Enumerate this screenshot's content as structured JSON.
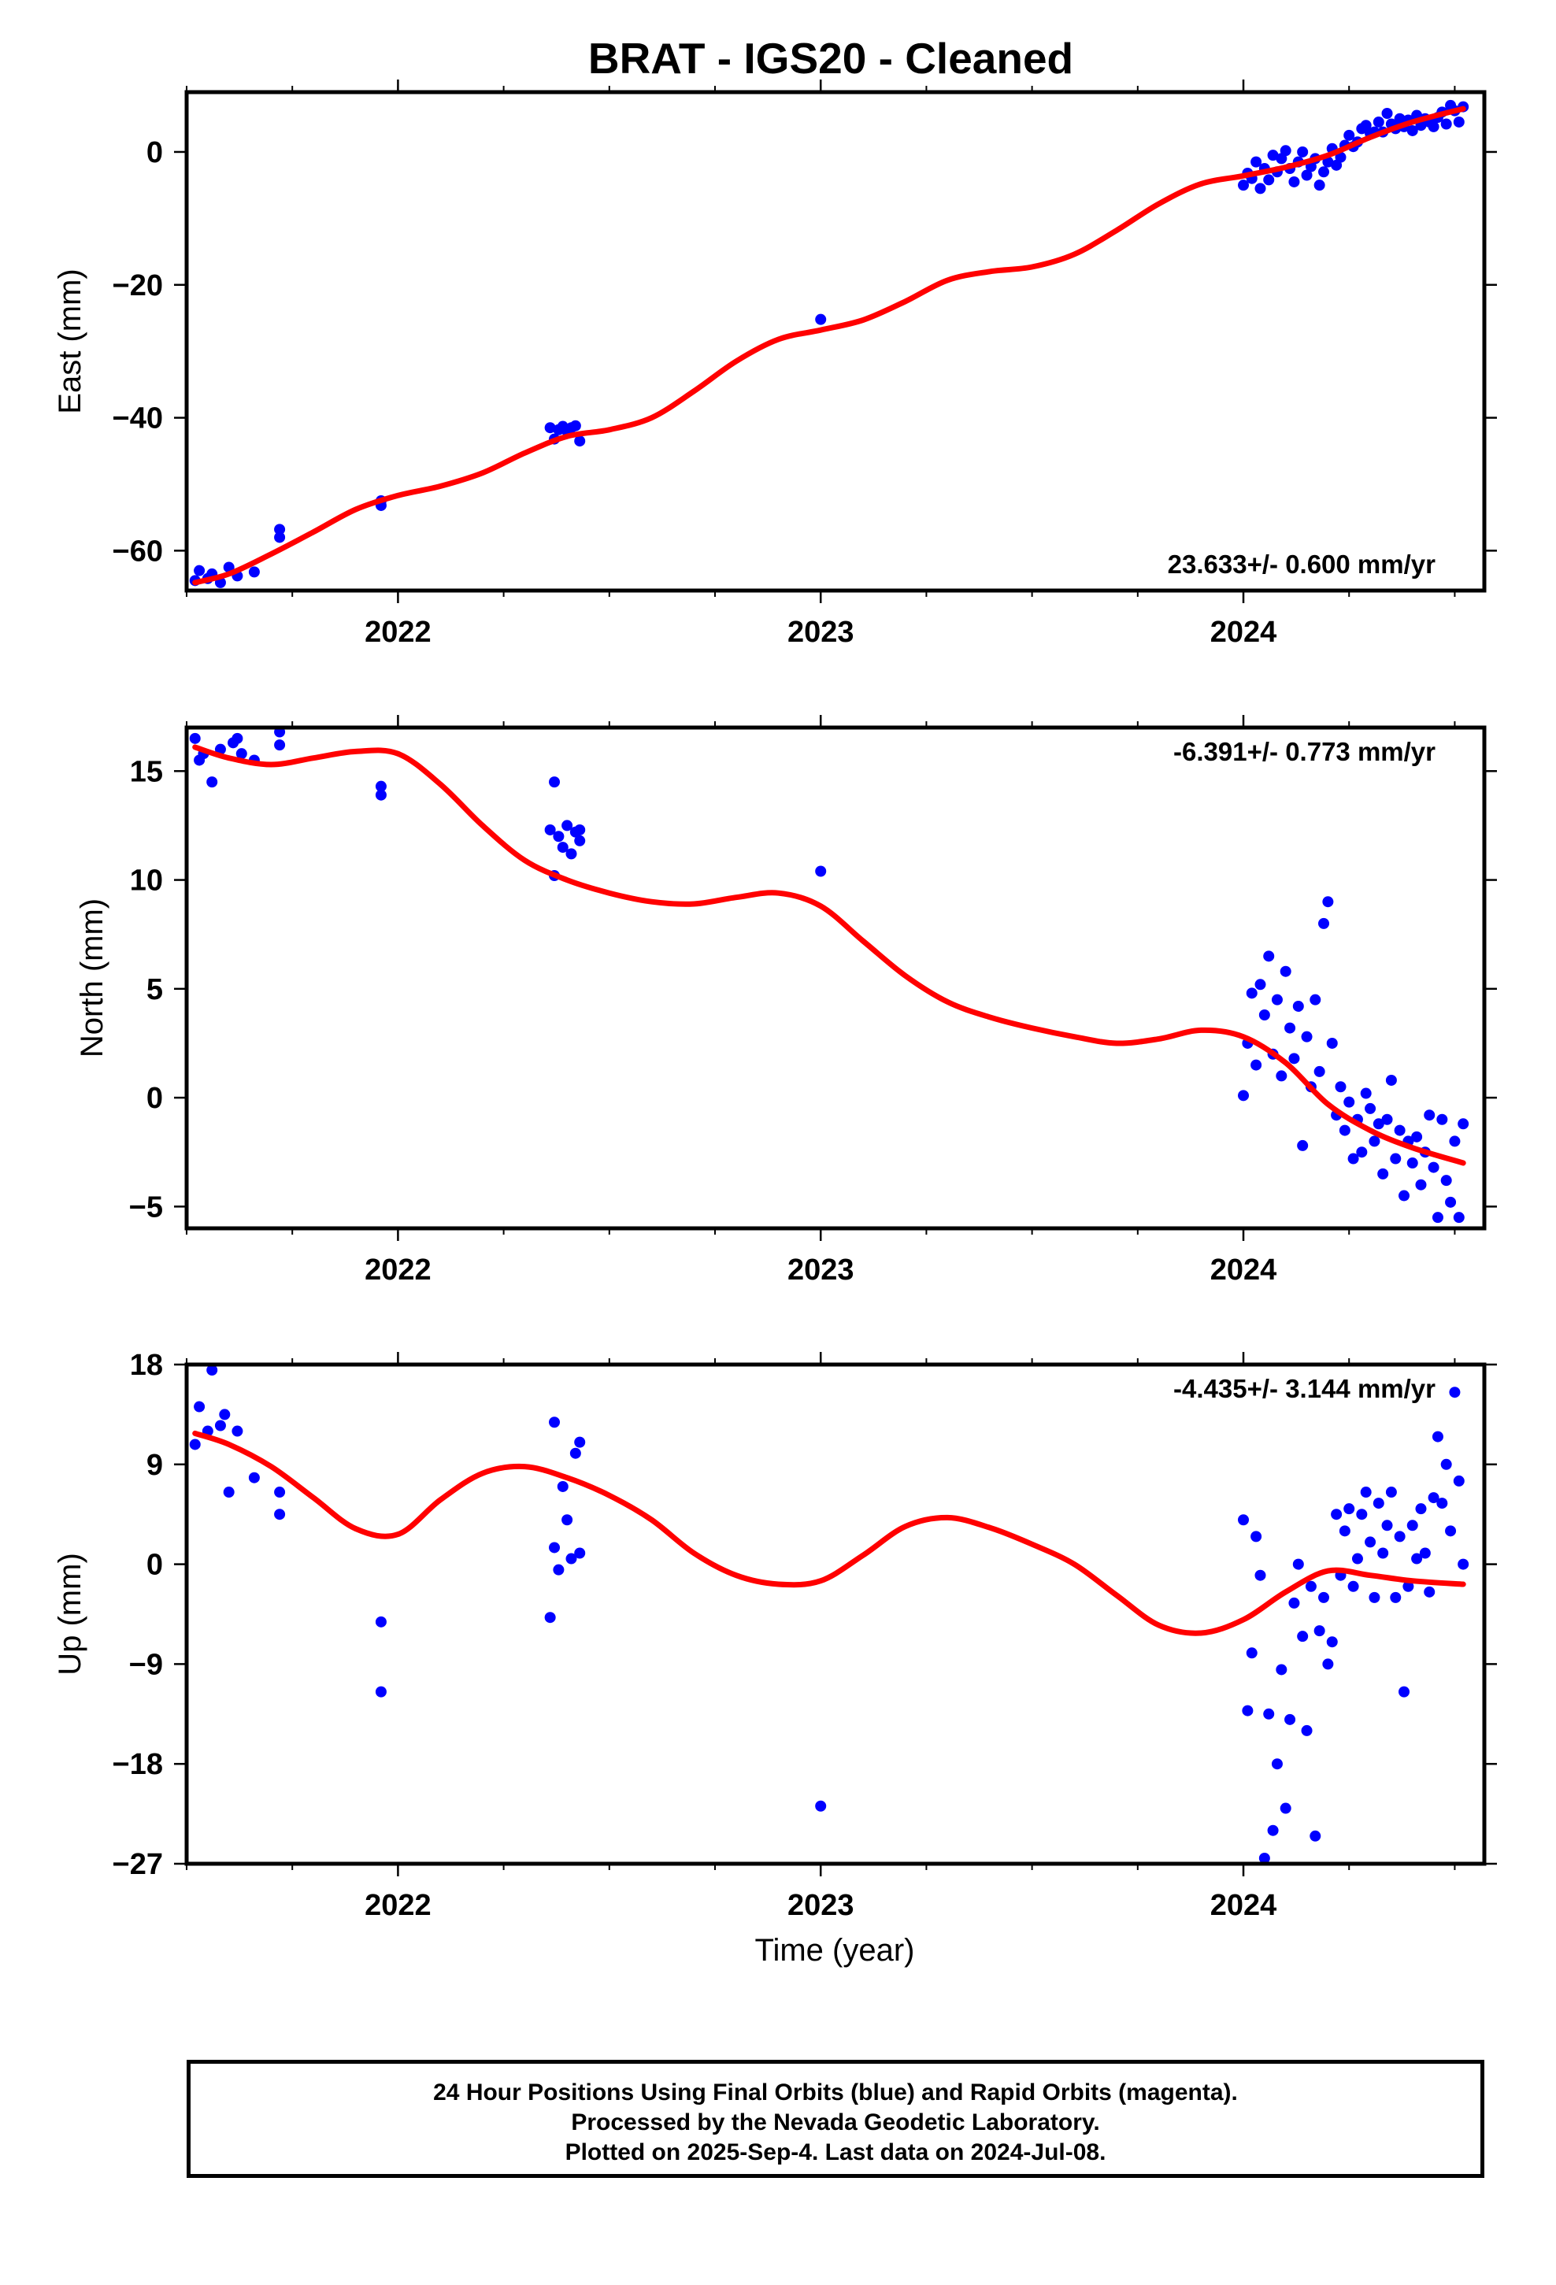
{
  "title": "BRAT  - IGS20 - Cleaned",
  "x_axis_label": "Time (year)",
  "footer": {
    "line1": "24 Hour Positions Using Final Orbits (blue) and Rapid Orbits (magenta).",
    "line2": "Processed by the Nevada Geodetic Laboratory.",
    "line3": "Plotted on 2025-Sep-4. Last data on 2024-Jul-08."
  },
  "colors": {
    "points": "#0000ff",
    "fit": "#ff0000",
    "frame": "#000000"
  },
  "chart_data": [
    {
      "type": "scatter",
      "ylabel": "East (mm)",
      "rate_label": "23.633+/- 0.600 mm/yr",
      "xlim": [
        2021.5,
        2024.57
      ],
      "ylim": [
        -66,
        9
      ],
      "xticks": [
        2022,
        2023,
        2024
      ],
      "yticks": [
        -60,
        -40,
        -20,
        0
      ],
      "fit": {
        "x": [
          2021.52,
          2021.6,
          2021.7,
          2021.8,
          2021.9,
          2022.0,
          2022.1,
          2022.2,
          2022.3,
          2022.4,
          2022.5,
          2022.6,
          2022.7,
          2022.8,
          2022.9,
          2023.0,
          2023.1,
          2023.2,
          2023.3,
          2023.4,
          2023.5,
          2023.6,
          2023.7,
          2023.8,
          2023.9,
          2024.0,
          2024.1,
          2024.2,
          2024.3,
          2024.4,
          2024.52
        ],
        "y": [
          -64.8,
          -63.5,
          -60.5,
          -57.2,
          -53.8,
          -51.7,
          -50.3,
          -48.3,
          -45.3,
          -42.8,
          -41.8,
          -40.0,
          -36.0,
          -31.5,
          -28.2,
          -26.8,
          -25.3,
          -22.5,
          -19.3,
          -18.0,
          -17.3,
          -15.4,
          -11.8,
          -7.8,
          -4.8,
          -3.6,
          -2.3,
          -0.5,
          2.2,
          4.5,
          6.5
        ]
      },
      "points": {
        "x": [
          2021.52,
          2021.53,
          2021.55,
          2021.56,
          2021.58,
          2021.6,
          2021.62,
          2021.66,
          2021.72,
          2021.72,
          2021.96,
          2021.96,
          2022.36,
          2022.37,
          2022.38,
          2022.39,
          2022.4,
          2022.41,
          2022.42,
          2022.43,
          2023.0,
          2024.0,
          2024.01,
          2024.02,
          2024.03,
          2024.04,
          2024.05,
          2024.06,
          2024.07,
          2024.08,
          2024.09,
          2024.1,
          2024.11,
          2024.12,
          2024.13,
          2024.14,
          2024.15,
          2024.16,
          2024.17,
          2024.18,
          2024.19,
          2024.2,
          2024.21,
          2024.22,
          2024.23,
          2024.24,
          2024.25,
          2024.26,
          2024.27,
          2024.28,
          2024.29,
          2024.3,
          2024.31,
          2024.32,
          2024.33,
          2024.34,
          2024.35,
          2024.36,
          2024.37,
          2024.38,
          2024.39,
          2024.4,
          2024.41,
          2024.42,
          2024.43,
          2024.44,
          2024.45,
          2024.46,
          2024.47,
          2024.48,
          2024.49,
          2024.5,
          2024.51,
          2024.52
        ],
        "y": [
          -64.5,
          -63.0,
          -64.2,
          -63.5,
          -64.8,
          -62.5,
          -63.8,
          -63.2,
          -56.8,
          -58.0,
          -52.5,
          -53.2,
          -41.5,
          -43.2,
          -41.8,
          -41.3,
          -42.0,
          -41.5,
          -41.2,
          -43.5,
          -25.2,
          -5.0,
          -3.2,
          -4.0,
          -1.5,
          -5.5,
          -2.5,
          -4.2,
          -0.5,
          -3.0,
          -1.0,
          0.2,
          -2.5,
          -4.5,
          -1.5,
          0.0,
          -3.5,
          -2.2,
          -1.0,
          -5.0,
          -3.0,
          -1.5,
          0.5,
          -2.0,
          -0.8,
          1.0,
          2.5,
          0.8,
          1.5,
          3.5,
          4.0,
          2.8,
          3.0,
          4.5,
          3.0,
          5.8,
          4.2,
          3.5,
          5.0,
          3.8,
          4.8,
          3.2,
          5.5,
          4.0,
          5.0,
          4.5,
          3.8,
          5.2,
          6.0,
          4.2,
          7.0,
          6.2,
          4.5,
          6.8
        ]
      }
    },
    {
      "type": "scatter",
      "ylabel": "North (mm)",
      "rate_label": "-6.391+/- 0.773 mm/yr",
      "xlim": [
        2021.5,
        2024.57
      ],
      "ylim": [
        -6,
        17
      ],
      "xticks": [
        2022,
        2023,
        2024
      ],
      "yticks": [
        -5,
        0,
        5,
        10,
        15
      ],
      "fit": {
        "x": [
          2021.52,
          2021.6,
          2021.7,
          2021.8,
          2021.9,
          2022.0,
          2022.1,
          2022.2,
          2022.3,
          2022.4,
          2022.5,
          2022.6,
          2022.7,
          2022.8,
          2022.9,
          2023.0,
          2023.1,
          2023.2,
          2023.3,
          2023.4,
          2023.5,
          2023.6,
          2023.7,
          2023.8,
          2023.9,
          2024.0,
          2024.1,
          2024.2,
          2024.3,
          2024.4,
          2024.52
        ],
        "y": [
          16.1,
          15.6,
          15.3,
          15.6,
          15.9,
          15.8,
          14.4,
          12.5,
          10.9,
          10.0,
          9.4,
          9.0,
          8.9,
          9.2,
          9.4,
          8.8,
          7.2,
          5.6,
          4.4,
          3.7,
          3.2,
          2.8,
          2.5,
          2.7,
          3.1,
          2.8,
          1.6,
          -0.3,
          -1.5,
          -2.3,
          -3.0
        ]
      },
      "points": {
        "x": [
          2021.52,
          2021.53,
          2021.54,
          2021.56,
          2021.58,
          2021.61,
          2021.62,
          2021.63,
          2021.66,
          2021.72,
          2021.72,
          2021.96,
          2021.96,
          2022.36,
          2022.37,
          2022.37,
          2022.38,
          2022.39,
          2022.4,
          2022.41,
          2022.42,
          2022.43,
          2022.43,
          2023.0,
          2024.0,
          2024.01,
          2024.02,
          2024.03,
          2024.04,
          2024.05,
          2024.06,
          2024.07,
          2024.08,
          2024.09,
          2024.1,
          2024.11,
          2024.12,
          2024.13,
          2024.14,
          2024.15,
          2024.16,
          2024.17,
          2024.18,
          2024.19,
          2024.2,
          2024.21,
          2024.22,
          2024.23,
          2024.24,
          2024.25,
          2024.26,
          2024.27,
          2024.28,
          2024.29,
          2024.3,
          2024.31,
          2024.32,
          2024.33,
          2024.34,
          2024.35,
          2024.36,
          2024.37,
          2024.38,
          2024.39,
          2024.4,
          2024.41,
          2024.42,
          2024.43,
          2024.44,
          2024.45,
          2024.46,
          2024.47,
          2024.48,
          2024.49,
          2024.5,
          2024.51,
          2024.52
        ],
        "y": [
          16.5,
          15.5,
          15.8,
          14.5,
          16.0,
          16.3,
          16.5,
          15.8,
          15.5,
          16.8,
          16.2,
          14.3,
          13.9,
          12.3,
          14.5,
          10.2,
          12.0,
          11.5,
          12.5,
          11.2,
          12.2,
          11.8,
          12.3,
          10.4,
          0.1,
          2.5,
          4.8,
          1.5,
          5.2,
          3.8,
          6.5,
          2.0,
          4.5,
          1.0,
          5.8,
          3.2,
          1.8,
          4.2,
          -2.2,
          2.8,
          0.5,
          4.5,
          1.2,
          8.0,
          9.0,
          2.5,
          -0.8,
          0.5,
          -1.5,
          -0.2,
          -2.8,
          -1.0,
          -2.5,
          0.2,
          -0.5,
          -2.0,
          -1.2,
          -3.5,
          -1.0,
          0.8,
          -2.8,
          -1.5,
          -4.5,
          -2.0,
          -3.0,
          -1.8,
          -4.0,
          -2.5,
          -0.8,
          -3.2,
          -5.5,
          -1.0,
          -3.8,
          -4.8,
          -2.0,
          -5.5,
          -1.2
        ]
      }
    },
    {
      "type": "scatter",
      "ylabel": "Up (mm)",
      "rate_label": "-4.435+/- 3.144 mm/yr",
      "xlim": [
        2021.5,
        2024.57
      ],
      "ylim": [
        -27,
        18
      ],
      "xticks": [
        2022,
        2023,
        2024
      ],
      "yticks": [
        -27,
        -18,
        -9,
        0,
        9,
        18
      ],
      "fit": {
        "x": [
          2021.52,
          2021.6,
          2021.7,
          2021.8,
          2021.9,
          2022.0,
          2022.1,
          2022.2,
          2022.3,
          2022.4,
          2022.5,
          2022.6,
          2022.7,
          2022.8,
          2022.9,
          2023.0,
          2023.1,
          2023.2,
          2023.3,
          2023.4,
          2023.5,
          2023.6,
          2023.7,
          2023.8,
          2023.9,
          2024.0,
          2024.1,
          2024.2,
          2024.3,
          2024.4,
          2024.52
        ],
        "y": [
          11.8,
          10.8,
          8.8,
          6.0,
          3.2,
          2.7,
          5.8,
          8.2,
          8.8,
          7.8,
          6.2,
          4.0,
          1.0,
          -1.0,
          -1.8,
          -1.5,
          0.8,
          3.4,
          4.2,
          3.3,
          1.8,
          0.0,
          -2.8,
          -5.5,
          -6.2,
          -5.0,
          -2.5,
          -0.6,
          -1.0,
          -1.5,
          -1.8
        ]
      },
      "points": {
        "x": [
          2021.52,
          2021.53,
          2021.55,
          2021.56,
          2021.58,
          2021.59,
          2021.6,
          2021.62,
          2021.66,
          2021.72,
          2021.72,
          2021.96,
          2021.96,
          2022.36,
          2022.37,
          2022.37,
          2022.38,
          2022.39,
          2022.4,
          2022.41,
          2022.42,
          2022.43,
          2022.43,
          2023.0,
          2024.0,
          2024.01,
          2024.02,
          2024.03,
          2024.04,
          2024.05,
          2024.06,
          2024.07,
          2024.08,
          2024.09,
          2024.1,
          2024.11,
          2024.12,
          2024.13,
          2024.14,
          2024.15,
          2024.16,
          2024.17,
          2024.18,
          2024.19,
          2024.2,
          2024.21,
          2024.22,
          2024.23,
          2024.24,
          2024.25,
          2024.26,
          2024.27,
          2024.28,
          2024.29,
          2024.3,
          2024.31,
          2024.32,
          2024.33,
          2024.34,
          2024.35,
          2024.36,
          2024.37,
          2024.38,
          2024.39,
          2024.4,
          2024.41,
          2024.42,
          2024.43,
          2024.44,
          2024.45,
          2024.46,
          2024.47,
          2024.48,
          2024.49,
          2024.5,
          2024.51,
          2024.52
        ],
        "y": [
          10.8,
          14.2,
          12.0,
          17.5,
          12.5,
          13.5,
          6.5,
          12.0,
          7.8,
          6.5,
          4.5,
          -5.2,
          -11.5,
          -4.8,
          12.8,
          1.5,
          -0.5,
          7.0,
          4.0,
          0.5,
          10.0,
          11.0,
          1.0,
          -21.8,
          4.0,
          -13.2,
          -8.0,
          2.5,
          -1.0,
          -26.5,
          -13.5,
          -24.0,
          -18.0,
          -9.5,
          -22.0,
          -14.0,
          -3.5,
          0.0,
          -6.5,
          -15.0,
          -2.0,
          -24.5,
          -6.0,
          -3.0,
          -9.0,
          -7.0,
          4.5,
          -1.0,
          3.0,
          5.0,
          -2.0,
          0.5,
          4.5,
          6.5,
          2.0,
          -3.0,
          5.5,
          1.0,
          3.5,
          6.5,
          -3.0,
          2.5,
          -11.5,
          -2.0,
          3.5,
          0.5,
          5.0,
          1.0,
          -2.5,
          6.0,
          11.5,
          5.5,
          9.0,
          3.0,
          15.5,
          7.5,
          0.0
        ]
      }
    }
  ]
}
